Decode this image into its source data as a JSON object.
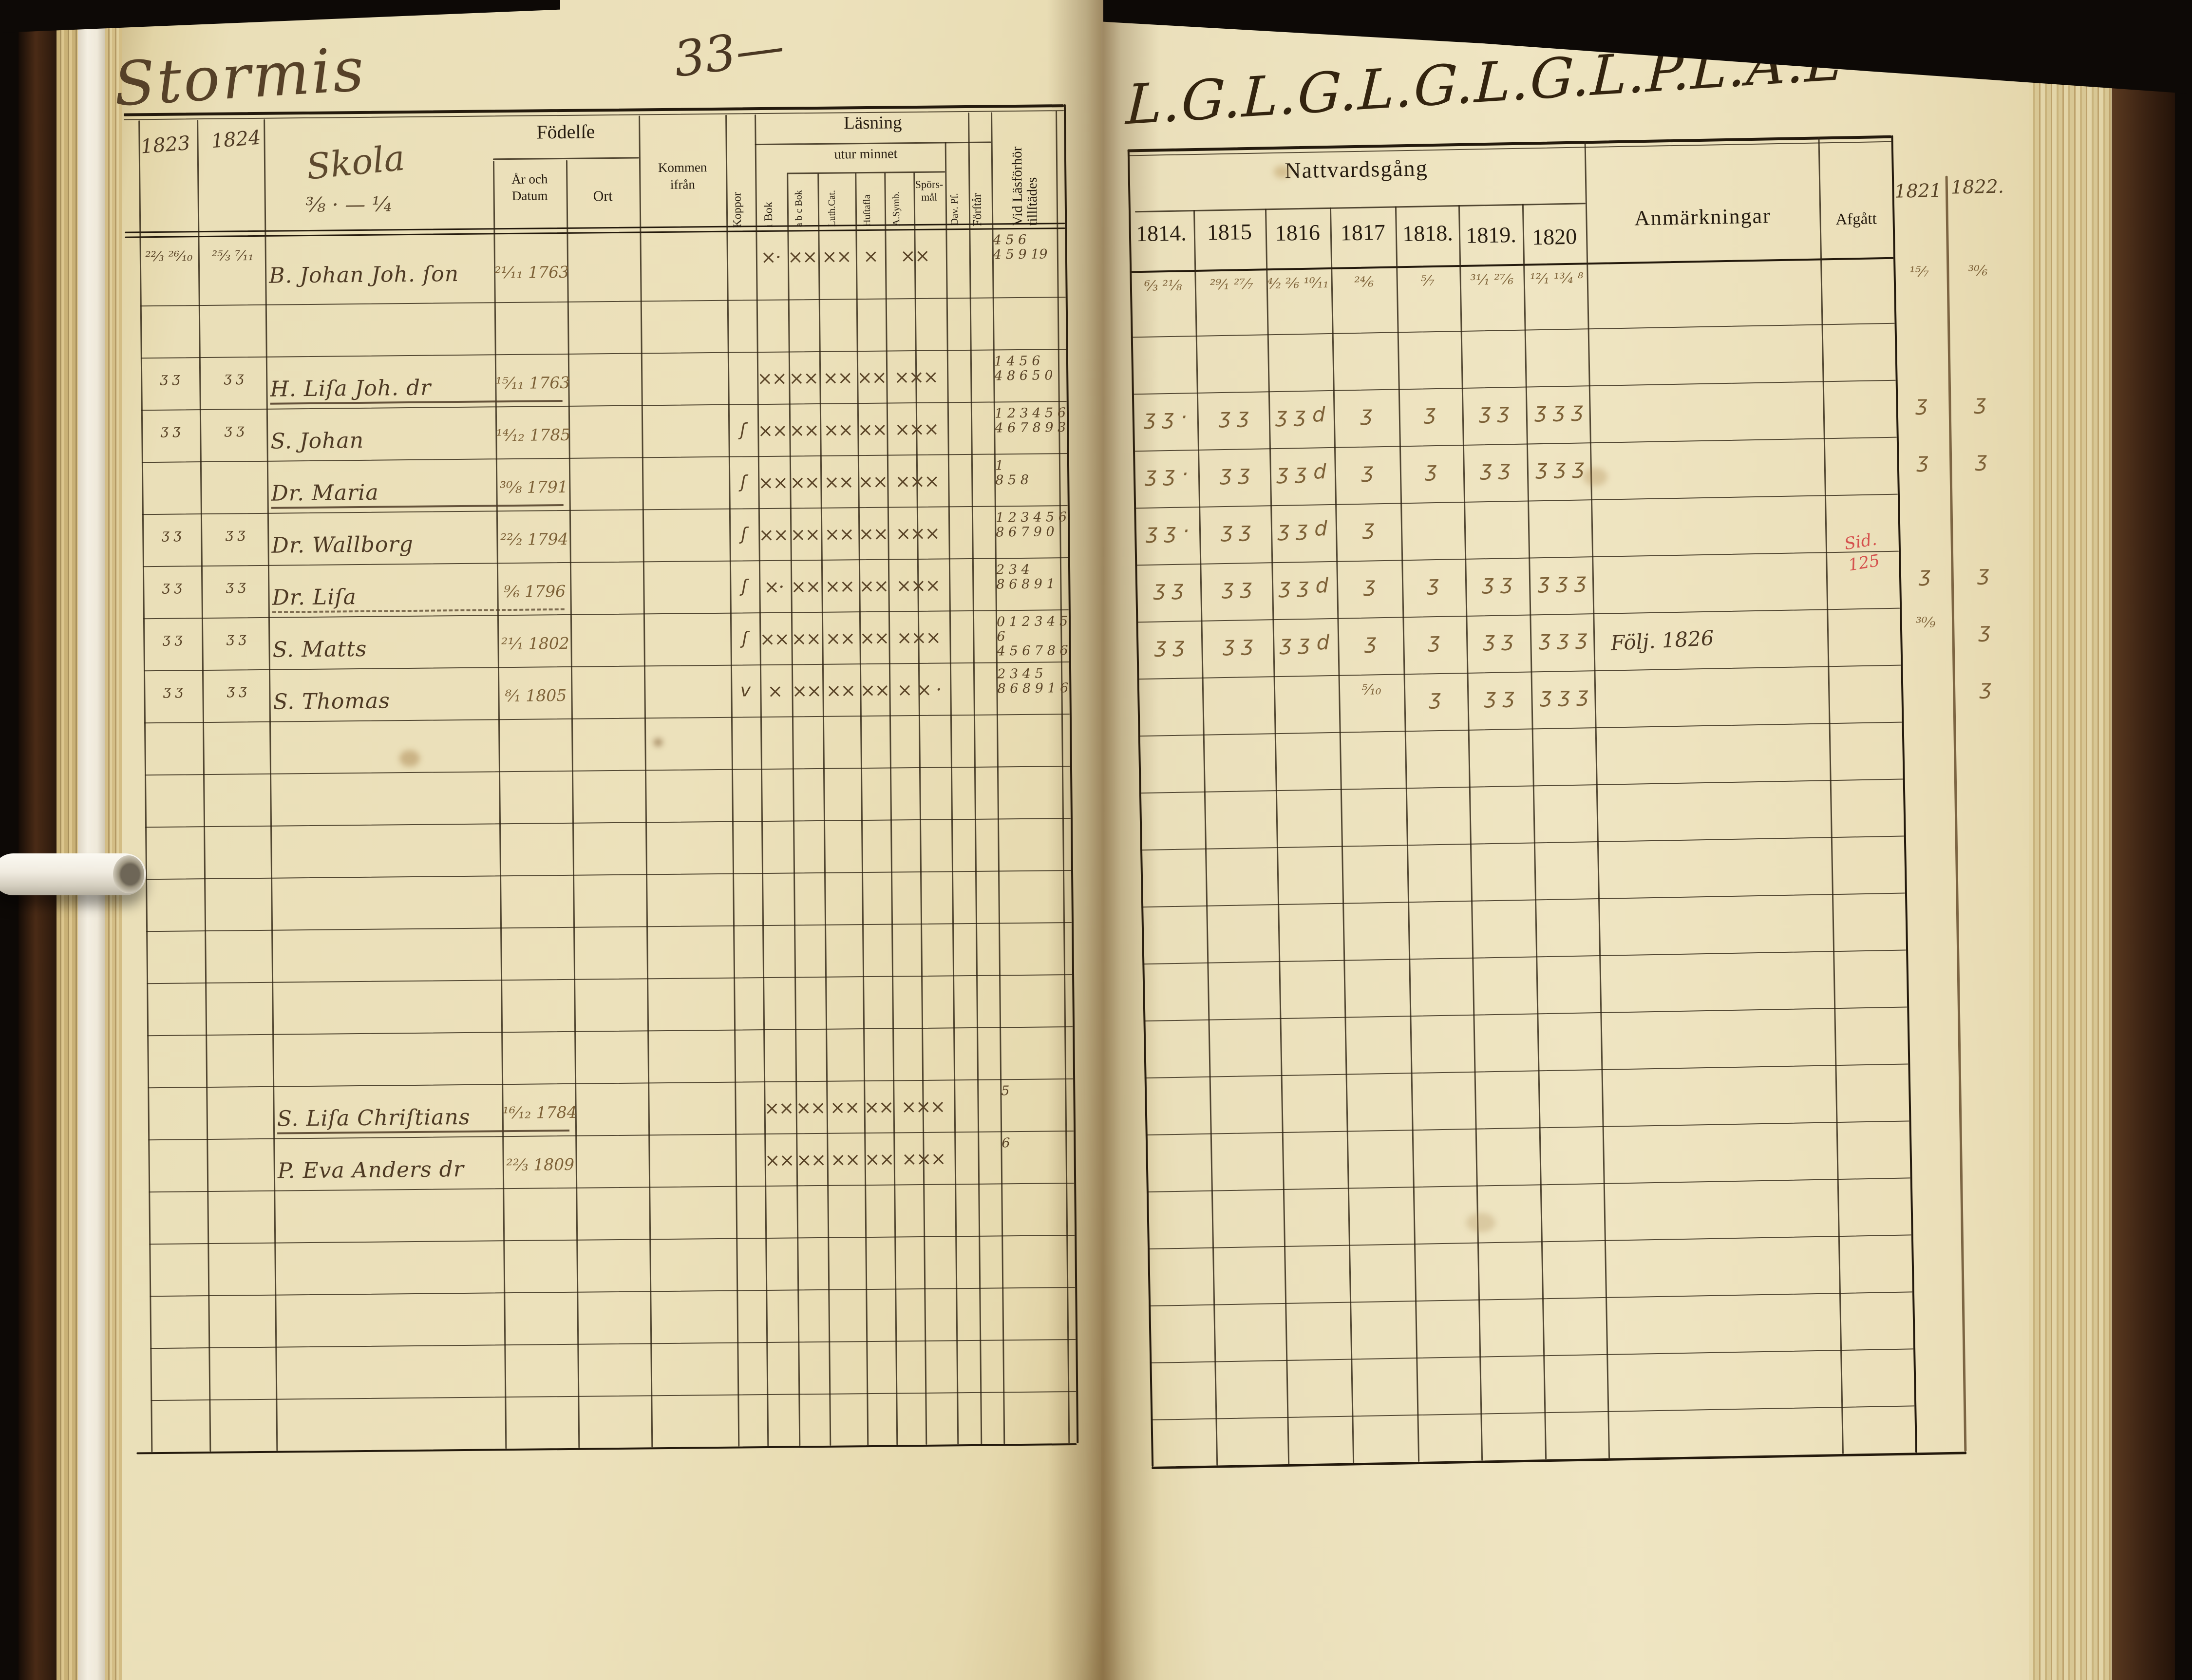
{
  "document": {
    "type_label": "Parish examination register scan",
    "left_page": {
      "place_title": "Stormis",
      "page_number": "33—",
      "school_note": "Skola",
      "school_dates": "³⁄₈ · — ¹⁄₄",
      "margin_year_1": "1823",
      "margin_year_2": "1824",
      "columns": {
        "fodelse": "Födelſe",
        "ar_datum": "År och\nDatum",
        "ort": "Ort",
        "kommen": "Kommen\nifrån",
        "koppor": "Koppor",
        "lasning": "Läsning",
        "i_bok": "i Bok",
        "utur_minnet": "utur minnet",
        "abc_bok": "a b c Bok",
        "luth_cat": "Luth.Cat.",
        "hustafla": "Huſtafla",
        "a_symb": "A.Symb.",
        "sporsmal": "Spörs-\nmål",
        "dav_pf": "Dav. Pſ.",
        "forstar": "Förſtår",
        "vid_lasforhor": "Vid Läsförhör\ntillſtädes"
      },
      "rows": [
        {
          "m1": "²²⁄₃ ²⁶⁄₁₀",
          "m2": "²⁵⁄₃ ⁷⁄₁₁",
          "name": "B. Johan Joh. ſon",
          "born": "²¹⁄₁₁ 1763",
          "c1": "×·",
          "c2": "××",
          "c3": "××",
          "c4": "×",
          "c5": "××",
          "vid": "4 5 6\n4 5 9 19"
        },
        {},
        {
          "m1": "ʒ ʒ",
          "m2": "ʒ ʒ",
          "name": "H. Liſa Joh. dr",
          "u": "solid",
          "born": "¹⁵⁄₁₁ 1763",
          "c1": "××",
          "c2": "××",
          "c3": "××",
          "c4": "××",
          "c5": "×××",
          "vid": "1 4 5 6\n4 8 6 5 0"
        },
        {
          "m1": "ʒ ʒ",
          "m2": "ʒ ʒ",
          "name": "S. Johan",
          "born": "¹⁴⁄₁₂ 1785",
          "kop": "ʃ",
          "c1": "××",
          "c2": "××",
          "c3": "××",
          "c4": "××",
          "c5": "×××",
          "vid": "1 2 3 4 5 6\n4 6 7 8 9 3"
        },
        {
          "name": "Dr. Maria",
          "u": "solid",
          "born": "³⁰⁄₈ 1791",
          "kop": "ʃ",
          "c1": "××",
          "c2": "××",
          "c3": "××",
          "c4": "××",
          "c5": "×××",
          "vid": "1\n8 5 8"
        },
        {
          "m1": "ʒ ʒ",
          "m2": "ʒ ʒ",
          "name": "Dr. Wallborg",
          "born": "²²⁄₂ 1794",
          "kop": "ʃ",
          "c1": "××",
          "c2": "××",
          "c3": "××",
          "c4": "××",
          "c5": "×××",
          "vid": "1 2 3 4 5 6\n8 6 7 9 0"
        },
        {
          "m1": "ʒ ʒ",
          "m2": "ʒ ʒ",
          "name": "Dr. Liſa",
          "u": "dashed",
          "born": "⁹⁄₆ 1796",
          "kop": "ʃ",
          "c1": "×·",
          "c2": "××",
          "c3": "××",
          "c4": "××",
          "c5": "×××",
          "vid": "2 3 4\n8 6 8 9 1"
        },
        {
          "m1": "ʒ ʒ",
          "m2": "ʒ ʒ",
          "name": "S. Matts",
          "born": "²¹⁄₁ 1802",
          "kop": "ʃ",
          "c1": "××",
          "c2": "××",
          "c3": "××",
          "c4": "××",
          "c5": "×××",
          "vid": "0 1 2 3 4 5 6\n4 5 6 7 8   6"
        },
        {
          "m1": "ʒ ʒ",
          "m2": "ʒ ʒ",
          "name": "S. Thomas",
          "born": "⁸⁄₁ 1805",
          "kop": "v",
          "c1": "×",
          "c2": "××",
          "c3": "××",
          "c4": "××",
          "c5": "× × ·",
          "vid": "2 3 4 5\n8 6 8 9 1   6"
        },
        {},
        {},
        {},
        {},
        {},
        {},
        {},
        {
          "name": "S. Liſa Chriſtians",
          "u": "solid",
          "born": "¹⁶⁄₁₂ 1784",
          "c1": "××",
          "c2": "××",
          "c3": "××",
          "c4": "××",
          "c5": "×××",
          "vid": "5"
        },
        {
          "name": "P. Eva Anders dr",
          "born": "²²⁄₃ 1809",
          "c1": "××",
          "c2": "××",
          "c3": "××",
          "c4": "××",
          "c5": "×××",
          "vid": "6"
        },
        {},
        {},
        {},
        {},
        {}
      ]
    },
    "right_page": {
      "scrawl": "L.G.L.G.L.G.L.G.L.P.L.A.L",
      "group_title": "Nattvardsgång",
      "years": [
        "1814.",
        "1815",
        "1816",
        "1817",
        "1818.",
        "1819.",
        "1820"
      ],
      "anmarkningar": "Anmärkningar",
      "afgatt": "Afgått",
      "margin_year_1": "1821",
      "margin_year_2": "1822.",
      "rows": [
        {
          "y1": "⁶⁄₃ ²¹⁄₈",
          "y2": "²⁹⁄₁ ²⁷⁄₇",
          "y3": "⁴⁄₂ ²⁄₆ ¹⁰⁄₁₁",
          "y4": "²⁴⁄₆",
          "y5": "⁵⁄₇",
          "y6": "³¹⁄₁ ²⁷⁄₆",
          "y7": "¹²⁄₁ ¹³⁄₄ ⁸",
          "m1": "¹⁵⁄₇",
          "m2": "³⁰⁄₆"
        },
        {},
        {
          "y1": "ʒ ʒ ·",
          "y2": "ʒ ʒ",
          "y3": "ʒ ʒ d",
          "y4": "ʒ",
          "y5": "ʒ",
          "y6": "ʒ ʒ",
          "y7": "ʒ ʒ ʒ",
          "m1": "ʒ",
          "m2": "ʒ"
        },
        {
          "y1": "ʒ ʒ ·",
          "y2": "ʒ ʒ",
          "y3": "ʒ ʒ d",
          "y4": "ʒ",
          "y5": "ʒ",
          "y6": "ʒ ʒ",
          "y7": "ʒ ʒ ʒ",
          "m1": "ʒ",
          "m2": "ʒ"
        },
        {
          "y1": "ʒ ʒ ·",
          "y2": "ʒ ʒ",
          "y3": "ʒ ʒ d",
          "y4": "ʒ"
        },
        {
          "y1": "ʒ ʒ",
          "y2": "ʒ ʒ",
          "y3": "ʒ ʒ d",
          "y4": "ʒ",
          "y5": "ʒ",
          "y6": "ʒ ʒ",
          "y7": "ʒ ʒ ʒ",
          "afg_red": "Sid.\n125",
          "m1": "ʒ",
          "m2": "ʒ"
        },
        {
          "y1": "ʒ ʒ",
          "y2": "ʒ ʒ",
          "y3": "ʒ ʒ d",
          "y4": "ʒ",
          "y5": "ʒ",
          "y6": "ʒ ʒ",
          "y7": "ʒ ʒ ʒ",
          "anm": "Följ. 1826",
          "m1": "³⁰⁄₉",
          "m2": "ʒ"
        },
        {
          "y4": "⁵⁄₁₀",
          "y5": "ʒ",
          "y6": "ʒ ʒ",
          "y7": "ʒ ʒ ʒ",
          "m2": "ʒ"
        },
        {},
        {},
        {},
        {},
        {},
        {},
        {},
        {},
        {},
        {},
        {},
        {}
      ]
    }
  }
}
